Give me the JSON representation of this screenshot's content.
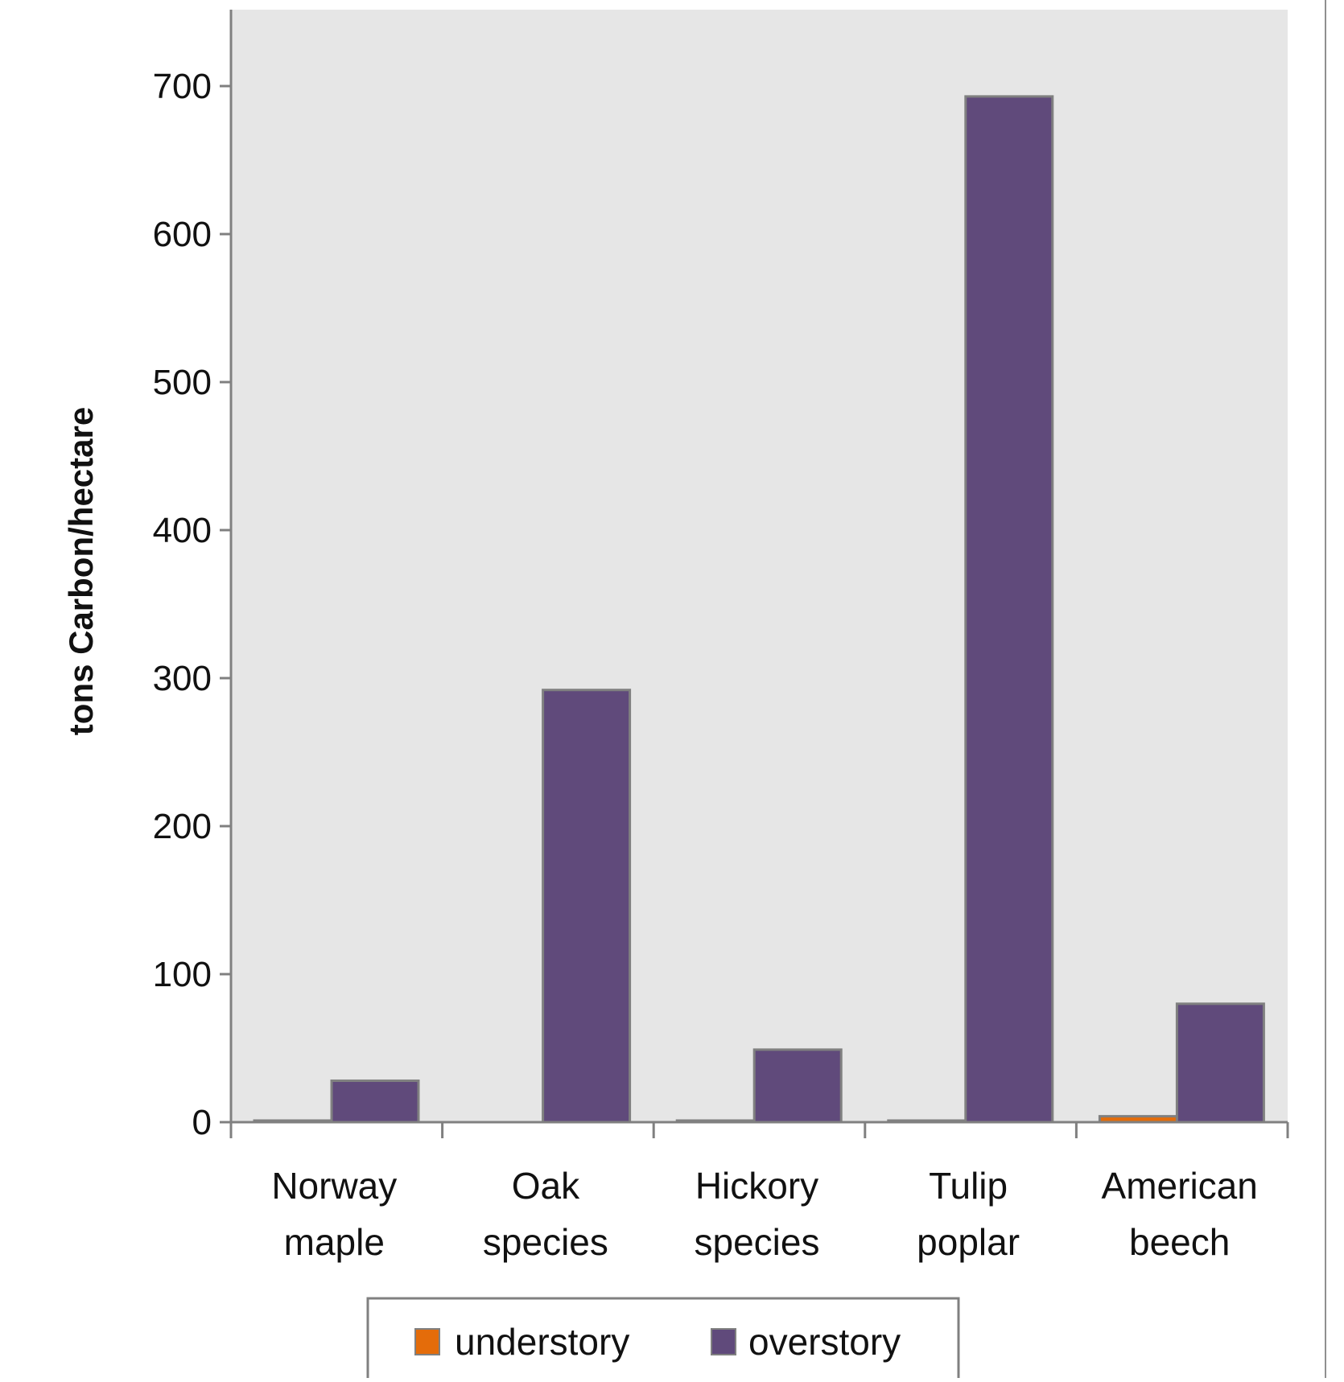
{
  "chart_data": {
    "type": "bar",
    "title": "",
    "xlabel": "",
    "ylabel": "tons Carbon/hectare",
    "ylim": [
      0,
      750
    ],
    "yticks": [
      0,
      100,
      200,
      300,
      400,
      500,
      600,
      700
    ],
    "categories": [
      [
        "Norway",
        "maple"
      ],
      [
        "Oak",
        "species"
      ],
      [
        "Hickory",
        "species"
      ],
      [
        "Tulip",
        "poplar"
      ],
      [
        "American",
        "beech"
      ]
    ],
    "series": [
      {
        "name": "understory",
        "color": "#e46c0a",
        "values": [
          1,
          0,
          1,
          1,
          4
        ]
      },
      {
        "name": "overstory",
        "color": "#604a7b",
        "values": [
          28,
          292,
          49,
          693,
          80
        ]
      }
    ],
    "grid": false,
    "legend_position": "bottom",
    "plot_background": "#e6e6e6",
    "axis_color": "#808080",
    "bar_border_color": "#808080"
  }
}
